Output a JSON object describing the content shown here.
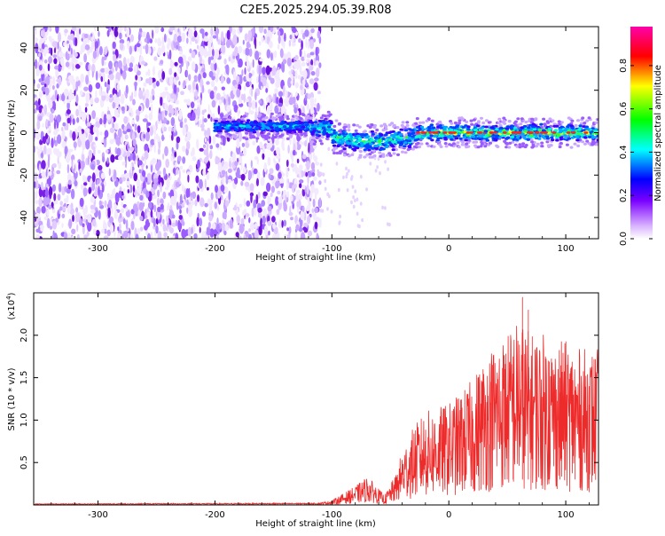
{
  "title": "C2E5.2025.294.05.39.R08",
  "colors": {
    "series_line": "#ee2b2b",
    "scatter_low": "#c9a6ff",
    "scatter_mid": "#7a1fe6",
    "colorbar": [
      "#ff00ff",
      "#ff0000",
      "#ffff00",
      "#00ff00",
      "#00ffff",
      "#0000ff",
      "#ff00ff",
      "#ffffff"
    ]
  },
  "chart_data": [
    {
      "type": "heatmap",
      "name": "spectrogram",
      "xlabel": "Height of straight line (km)",
      "ylabel": "Frequency (Hz)",
      "xlim": [
        -355,
        128
      ],
      "ylim": [
        -50,
        50
      ],
      "xticks": [
        -300,
        -200,
        -100,
        0,
        100
      ],
      "xtick_labels": [
        "-300",
        "-200",
        "-100",
        "0",
        "100"
      ],
      "yticks": [
        -40,
        -20,
        0,
        20,
        40
      ],
      "ytick_labels": [
        "-40",
        "-20",
        "0",
        "20",
        "40"
      ],
      "noise_region_x": [
        -355,
        -110
      ],
      "signal_band_x": [
        -200,
        128
      ],
      "signal_center_hz": 0,
      "colorbar": {
        "label": "Normalized spectral amplitude",
        "range": [
          0.0,
          0.98
        ],
        "ticks": [
          0.0,
          0.2,
          0.4,
          0.6,
          0.8
        ],
        "tick_labels": [
          "0.0",
          "0.2",
          "0.4",
          "0.6",
          "0.8"
        ]
      }
    },
    {
      "type": "line",
      "name": "snr",
      "xlabel": "Height of straight line (km)",
      "ylabel": "SNR (10 * v/v)",
      "scale_label_base": "(x10",
      "scale_label_exp": "4",
      "scale_label_end": ")",
      "xlim": [
        -355,
        128
      ],
      "ylim": [
        0,
        2.5
      ],
      "xticks": [
        -300,
        -200,
        -100,
        0,
        100
      ],
      "xtick_labels": [
        "-300",
        "-200",
        "-100",
        "0",
        "100"
      ],
      "yticks": [
        0.5,
        1.0,
        1.5,
        2.0
      ],
      "ytick_labels": [
        "0.5",
        "1.0",
        "1.5",
        "2.0"
      ],
      "envelope": {
        "x": [
          -355,
          -110,
          -100,
          -80,
          -70,
          -65,
          -55,
          -45,
          -40,
          -30,
          -20,
          -10,
          0,
          10,
          20,
          30,
          40,
          50,
          60,
          70,
          80,
          90,
          100,
          110,
          120,
          128
        ],
        "y": [
          0.01,
          0.015,
          0.03,
          0.12,
          0.18,
          0.15,
          0.06,
          0.2,
          0.35,
          0.5,
          0.6,
          0.62,
          0.65,
          0.72,
          0.8,
          0.95,
          1.05,
          1.1,
          1.2,
          1.1,
          1.1,
          1.05,
          1.05,
          1.0,
          1.0,
          1.0
        ]
      },
      "peak_points": [
        [
          36,
          1.45
        ],
        [
          48,
          1.6
        ],
        [
          55,
          1.75
        ],
        [
          63,
          2.45
        ],
        [
          68,
          2.3
        ],
        [
          75,
          1.85
        ],
        [
          85,
          1.7
        ],
        [
          95,
          1.5
        ],
        [
          108,
          1.35
        ],
        [
          120,
          1.4
        ]
      ]
    }
  ]
}
